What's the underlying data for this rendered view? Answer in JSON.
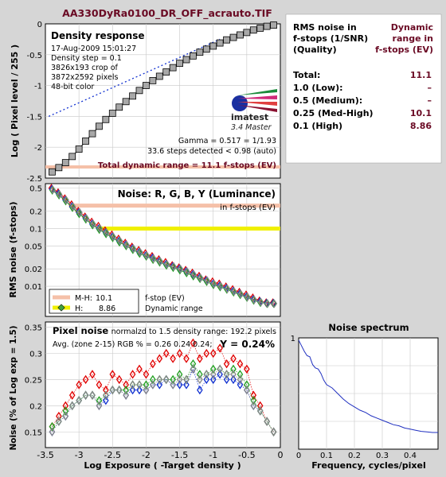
{
  "file_title": "AA330DyRa0100_DR_OFF_acrauto.TIF",
  "colors": {
    "background": "#d6d6d6",
    "panel_bg": "#ffffff",
    "title_maroon": "#6a0a24",
    "red": "#e00000",
    "green": "#20a020",
    "blue": "#1030d0",
    "gray": "#888888",
    "mh_band": "#f5c0a8",
    "h_band": "#f0f000",
    "spectrum_line": "#2030c0"
  },
  "density_panel": {
    "title": "Density response",
    "info": [
      "17-Aug-2009 15:01:27",
      "Density step = 0.1",
      "3826x193 crop of",
      "3872x2592 pixels",
      "48-bit color"
    ],
    "logo_text": "imatest",
    "version": "3.4  Master",
    "gamma": "Gamma = 0.517 = 1/1.93",
    "steps": "33.6 steps detected < 0.98 (auto)",
    "total_dr": "Total dynamic range = 11.1 f-stops (EV)"
  },
  "rms_table": {
    "header_left": [
      "RMS noise in",
      "f-stops (1/SNR)",
      "(Quality)"
    ],
    "header_right": [
      "Dynamic",
      "range in",
      "f-stops (EV)"
    ],
    "rows": [
      {
        "label": "Total:",
        "value": "11.1"
      },
      {
        "label": "1.0   (Low):",
        "value": "–"
      },
      {
        "label": "0.5   (Medium):",
        "value": "–"
      },
      {
        "label": "0.25 (Med-High)",
        "value": "10.1"
      },
      {
        "label": "0.1   (High)",
        "value": "8.86"
      }
    ]
  },
  "noise_panel": {
    "title": "Noise: R, G, B, Y (Luminance)",
    "subtitle": "in f-stops (EV)",
    "legend": [
      {
        "key": "M-H:",
        "value": "10.1",
        "color": "#f5c0a8"
      },
      {
        "key": "H:",
        "value": "8.86",
        "color": "#f0f000"
      }
    ],
    "legend_right": [
      "f-stop (EV)",
      "Dynamic range"
    ]
  },
  "pixel_noise_panel": {
    "title": "Pixel noise",
    "norm": "normalzd to 1.5 density range: 192.2 pixels",
    "avg": "Avg. (zone 2-15) RGB % = 0.26   0.24  0.24;",
    "y_value": "Y = 0.24%"
  },
  "spectrum_panel": {
    "title": "Noise spectrum"
  },
  "chart_data": [
    {
      "type": "line",
      "name": "density-response",
      "ylabel": "Log ( Pixel level / 255 )",
      "xlim": [
        -3.5,
        0
      ],
      "ylim": [
        -2.5,
        0
      ],
      "yticks": [
        "0",
        "-0.5",
        "-1",
        "-1.5",
        "-2",
        "-2.5"
      ],
      "x": [
        -3.4,
        -3.3,
        -3.2,
        -3.1,
        -3.0,
        -2.9,
        -2.8,
        -2.7,
        -2.6,
        -2.5,
        -2.4,
        -2.3,
        -2.2,
        -2.1,
        -2.0,
        -1.9,
        -1.8,
        -1.7,
        -1.6,
        -1.5,
        -1.4,
        -1.3,
        -1.2,
        -1.1,
        -1.0,
        -0.9,
        -0.8,
        -0.7,
        -0.6,
        -0.5,
        -0.4,
        -0.3,
        -0.2,
        -0.1
      ],
      "y": [
        -2.4,
        -2.33,
        -2.25,
        -2.15,
        -2.03,
        -1.9,
        -1.78,
        -1.66,
        -1.55,
        -1.45,
        -1.35,
        -1.26,
        -1.17,
        -1.08,
        -1.0,
        -0.92,
        -0.85,
        -0.78,
        -0.71,
        -0.64,
        -0.58,
        -0.52,
        -0.46,
        -0.41,
        -0.36,
        -0.31,
        -0.26,
        -0.22,
        -0.18,
        -0.14,
        -0.1,
        -0.07,
        -0.04,
        -0.02
      ],
      "fit_line": {
        "x": [
          -3.45,
          -0.9
        ],
        "y": [
          -1.5,
          -0.25
        ]
      }
    },
    {
      "type": "line",
      "name": "rms-noise",
      "ylabel": "RMS noise (f-stops)",
      "log_y": true,
      "ylim": [
        0.003,
        0.6
      ],
      "yticks": [
        0.5,
        0.2,
        0.1,
        0.05,
        0.02,
        0.01
      ],
      "xlim": [
        -3.5,
        0
      ],
      "mh_level": 0.25,
      "mh_range": [
        -3.15,
        -0.0
      ],
      "h_level": 0.1,
      "h_range": [
        -2.7,
        -0.0
      ],
      "x": [
        -3.4,
        -3.3,
        -3.2,
        -3.1,
        -3.0,
        -2.9,
        -2.8,
        -2.7,
        -2.6,
        -2.5,
        -2.4,
        -2.3,
        -2.2,
        -2.1,
        -2.0,
        -1.9,
        -1.8,
        -1.7,
        -1.6,
        -1.5,
        -1.4,
        -1.3,
        -1.2,
        -1.1,
        -1.0,
        -0.9,
        -0.8,
        -0.7,
        -0.6,
        -0.5,
        -0.4,
        -0.3,
        -0.2,
        -0.1
      ],
      "series": [
        {
          "color": "#e00000",
          "values": [
            0.5,
            0.42,
            0.33,
            0.26,
            0.2,
            0.16,
            0.13,
            0.11,
            0.092,
            0.078,
            0.066,
            0.056,
            0.048,
            0.042,
            0.037,
            0.033,
            0.029,
            0.026,
            0.023,
            0.021,
            0.019,
            0.017,
            0.015,
            0.013,
            0.012,
            0.011,
            0.0098,
            0.0088,
            0.0079,
            0.0071,
            0.0063,
            0.0056,
            0.0052,
            0.0052
          ]
        },
        {
          "color": "#1030d0",
          "values": [
            0.48,
            0.4,
            0.31,
            0.24,
            0.19,
            0.15,
            0.12,
            0.1,
            0.085,
            0.072,
            0.061,
            0.052,
            0.045,
            0.039,
            0.034,
            0.031,
            0.027,
            0.024,
            0.022,
            0.02,
            0.018,
            0.016,
            0.014,
            0.0125,
            0.011,
            0.0102,
            0.0092,
            0.0082,
            0.0074,
            0.0066,
            0.0059,
            0.0054,
            0.0051,
            0.0051
          ]
        },
        {
          "color": "#20a020",
          "values": [
            0.46,
            0.38,
            0.3,
            0.23,
            0.18,
            0.145,
            0.115,
            0.096,
            0.081,
            0.069,
            0.058,
            0.05,
            0.043,
            0.037,
            0.033,
            0.029,
            0.026,
            0.023,
            0.021,
            0.019,
            0.017,
            0.015,
            0.0135,
            0.012,
            0.0106,
            0.0097,
            0.0088,
            0.0079,
            0.0071,
            0.0064,
            0.0057,
            0.0052,
            0.005,
            0.005
          ]
        },
        {
          "color": "#888888",
          "values": [
            0.47,
            0.39,
            0.31,
            0.24,
            0.19,
            0.15,
            0.12,
            0.1,
            0.085,
            0.072,
            0.061,
            0.052,
            0.045,
            0.039,
            0.034,
            0.03,
            0.027,
            0.024,
            0.022,
            0.02,
            0.018,
            0.016,
            0.014,
            0.0125,
            0.011,
            0.01,
            0.009,
            0.0081,
            0.0073,
            0.0065,
            0.0058,
            0.0053,
            0.005,
            0.005
          ]
        }
      ]
    },
    {
      "type": "line",
      "name": "pixel-noise",
      "xlabel": "Log Exposure ( -Target density )",
      "ylabel": "Noise (% of Log exp = 1.5)",
      "xlim": [
        -3.5,
        0
      ],
      "ylim": [
        0.12,
        0.36
      ],
      "xticks": [
        "-3.5",
        "-3",
        "-2.5",
        "-2",
        "-1.5",
        "-1",
        "-0.5",
        "0"
      ],
      "yticks": [
        "0.35",
        "0.3",
        "0.25",
        "0.2",
        "0.15"
      ],
      "x": [
        -3.4,
        -3.3,
        -3.2,
        -3.1,
        -3.0,
        -2.9,
        -2.8,
        -2.7,
        -2.6,
        -2.5,
        -2.4,
        -2.3,
        -2.2,
        -2.1,
        -2.0,
        -1.9,
        -1.8,
        -1.7,
        -1.6,
        -1.5,
        -1.4,
        -1.3,
        -1.2,
        -1.1,
        -1.0,
        -0.9,
        -0.8,
        -0.7,
        -0.6,
        -0.5,
        -0.4,
        -0.3,
        -0.2,
        -0.1
      ],
      "series": [
        {
          "color": "#e00000",
          "values": [
            0.16,
            0.18,
            0.2,
            0.22,
            0.24,
            0.25,
            0.26,
            0.24,
            0.23,
            0.26,
            0.25,
            0.24,
            0.26,
            0.27,
            0.26,
            0.28,
            0.29,
            0.3,
            0.29,
            0.3,
            0.29,
            0.32,
            0.29,
            0.3,
            0.3,
            0.31,
            0.28,
            0.29,
            0.28,
            0.27,
            0.22,
            0.2,
            0.17,
            0.15
          ]
        },
        {
          "color": "#1030d0",
          "values": [
            0.15,
            0.17,
            0.18,
            0.2,
            0.21,
            0.22,
            0.22,
            0.2,
            0.21,
            0.23,
            0.23,
            0.22,
            0.23,
            0.23,
            0.23,
            0.24,
            0.24,
            0.25,
            0.24,
            0.24,
            0.24,
            0.27,
            0.23,
            0.25,
            0.25,
            0.26,
            0.25,
            0.25,
            0.24,
            0.23,
            0.2,
            0.19,
            0.17,
            0.15
          ]
        },
        {
          "color": "#20a020",
          "values": [
            0.16,
            0.17,
            0.19,
            0.2,
            0.21,
            0.22,
            0.22,
            0.21,
            0.22,
            0.23,
            0.23,
            0.23,
            0.24,
            0.24,
            0.24,
            0.25,
            0.25,
            0.25,
            0.25,
            0.26,
            0.25,
            0.28,
            0.26,
            0.26,
            0.27,
            0.27,
            0.26,
            0.27,
            0.26,
            0.24,
            0.21,
            0.19,
            0.17,
            0.15
          ]
        },
        {
          "color": "#888888",
          "values": [
            0.15,
            0.17,
            0.18,
            0.2,
            0.21,
            0.22,
            0.22,
            0.2,
            0.22,
            0.23,
            0.23,
            0.22,
            0.24,
            0.24,
            0.23,
            0.24,
            0.25,
            0.25,
            0.24,
            0.25,
            0.25,
            0.27,
            0.25,
            0.26,
            0.26,
            0.27,
            0.26,
            0.26,
            0.25,
            0.23,
            0.2,
            0.19,
            0.17,
            0.15
          ]
        }
      ]
    },
    {
      "type": "line",
      "name": "noise-spectrum",
      "xlabel": "Frequency, cycles/pixel",
      "xlim": [
        0,
        0.5
      ],
      "ylim": [
        0,
        1
      ],
      "xticks": [
        "0",
        "0.1",
        "0.2",
        "0.3",
        "0.4"
      ],
      "yticks": [
        "1"
      ],
      "x": [
        0,
        0.01,
        0.02,
        0.03,
        0.04,
        0.05,
        0.06,
        0.07,
        0.08,
        0.09,
        0.1,
        0.12,
        0.14,
        0.16,
        0.18,
        0.2,
        0.22,
        0.24,
        0.26,
        0.28,
        0.3,
        0.32,
        0.34,
        0.36,
        0.38,
        0.4,
        0.42,
        0.44,
        0.46,
        0.48,
        0.5
      ],
      "y": [
        0.98,
        0.93,
        0.88,
        0.84,
        0.83,
        0.76,
        0.73,
        0.72,
        0.68,
        0.62,
        0.58,
        0.55,
        0.5,
        0.45,
        0.41,
        0.38,
        0.35,
        0.33,
        0.3,
        0.28,
        0.26,
        0.24,
        0.22,
        0.21,
        0.19,
        0.18,
        0.17,
        0.16,
        0.155,
        0.15,
        0.15
      ]
    }
  ]
}
